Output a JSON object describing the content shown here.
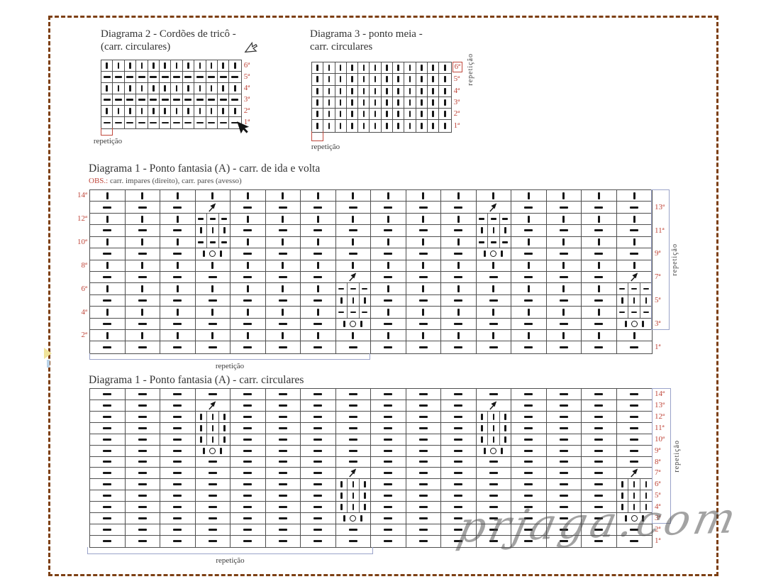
{
  "watermark": "prjaga.com",
  "colors": {
    "label_red": "#c0483c",
    "repeat_blue": "#9aa3c9",
    "border_brown": "#7d3f13",
    "symbol_black": "#161616"
  },
  "diagrams": {
    "d2": {
      "title_line1": "Diagrama 2 - Cordões de tricô -",
      "title_line2": "(carr. circulares)",
      "repeat_bottom": "repetição",
      "cols": 12,
      "rows": [
        {
          "label": "6ª",
          "base": "k"
        },
        {
          "label": "5ª",
          "base": "p"
        },
        {
          "label": "4ª",
          "base": "k"
        },
        {
          "label": "3ª",
          "base": "p"
        },
        {
          "label": "2ª",
          "base": "k"
        },
        {
          "label": "1ª",
          "base": "p"
        }
      ]
    },
    "d3": {
      "title_line1": "Diagrama 3 - ponto meia -",
      "title_line2": "carr. circulares",
      "repeat_bottom": "repetição",
      "repeat_side": "repetição",
      "cols": 12,
      "boxed_label_index": 0,
      "rows": [
        {
          "label": "6ª",
          "base": "k"
        },
        {
          "label": "5ª",
          "base": "k"
        },
        {
          "label": "4ª",
          "base": "k"
        },
        {
          "label": "3ª",
          "base": "k"
        },
        {
          "label": "2ª",
          "base": "k"
        },
        {
          "label": "1ª",
          "base": "k"
        }
      ]
    },
    "d1a": {
      "title": "Diagrama 1 - Ponto fantasia (A) - carr. de ida e volta",
      "obs_label": "OBS.:",
      "obs_text": " carr. impares (direito), carr. pares (avesso)",
      "repeat_bottom": "repetição",
      "repeat_side": "repetição",
      "cols": 16,
      "rows": [
        {
          "label": "14ª",
          "label_side": "left",
          "base": "k",
          "specials": {}
        },
        {
          "label": "13ª",
          "label_side": "right",
          "base": "p",
          "specials": {
            "4": "dec",
            "12": "dec"
          }
        },
        {
          "label": "12ª",
          "label_side": "left",
          "base": "k",
          "specials": {
            "4": "ppp",
            "12": "ppp"
          }
        },
        {
          "label": "11ª",
          "label_side": "right",
          "base": "p",
          "specials": {
            "4": "kkk",
            "12": "kkk"
          }
        },
        {
          "label": "10ª",
          "label_side": "left",
          "base": "k",
          "specials": {
            "4": "ppp",
            "12": "ppp"
          }
        },
        {
          "label": "9ª",
          "label_side": "right",
          "base": "p",
          "specials": {
            "4": "kok",
            "12": "kok"
          }
        },
        {
          "label": "8ª",
          "label_side": "left",
          "base": "k",
          "specials": {}
        },
        {
          "label": "7ª",
          "label_side": "right",
          "base": "p",
          "specials": {
            "8": "dec",
            "16": "dec"
          }
        },
        {
          "label": "6ª",
          "label_side": "left",
          "base": "k",
          "specials": {
            "8": "ppp",
            "16": "ppp"
          }
        },
        {
          "label": "5ª",
          "label_side": "right",
          "base": "p",
          "specials": {
            "8": "kkk",
            "16": "kkk"
          }
        },
        {
          "label": "4ª",
          "label_side": "left",
          "base": "k",
          "specials": {
            "8": "ppp",
            "16": "ppp"
          }
        },
        {
          "label": "3ª",
          "label_side": "right",
          "base": "p",
          "specials": {
            "8": "kok",
            "16": "kok"
          }
        },
        {
          "label": "2ª",
          "label_side": "left",
          "base": "k",
          "specials": {}
        },
        {
          "label": "1ª",
          "label_side": "right",
          "base": "p",
          "specials": {}
        }
      ]
    },
    "d1b": {
      "title": "Diagrama 1 - Ponto fantasia (A) - carr. circulares",
      "repeat_bottom": "repetição",
      "repeat_side": "repetição",
      "cols": 16,
      "rows": [
        {
          "label": "14ª",
          "label_side": "right",
          "base": "p",
          "specials": {}
        },
        {
          "label": "13ª",
          "label_side": "right",
          "base": "p",
          "specials": {
            "4": "dec",
            "12": "dec"
          }
        },
        {
          "label": "12ª",
          "label_side": "right",
          "base": "p",
          "specials": {
            "4": "kkk",
            "12": "kkk"
          }
        },
        {
          "label": "11ª",
          "label_side": "right",
          "base": "p",
          "specials": {
            "4": "kkk",
            "12": "kkk"
          }
        },
        {
          "label": "10ª",
          "label_side": "right",
          "base": "p",
          "specials": {
            "4": "kkk",
            "12": "kkk"
          }
        },
        {
          "label": "9ª",
          "label_side": "right",
          "base": "p",
          "specials": {
            "4": "kok",
            "12": "kok"
          }
        },
        {
          "label": "8ª",
          "label_side": "right",
          "base": "p",
          "specials": {}
        },
        {
          "label": "7ª",
          "label_side": "right",
          "base": "p",
          "specials": {
            "8": "dec",
            "16": "dec"
          }
        },
        {
          "label": "6ª",
          "label_side": "right",
          "base": "p",
          "specials": {
            "8": "kkk",
            "16": "kkk"
          }
        },
        {
          "label": "5ª",
          "label_side": "right",
          "base": "p",
          "specials": {
            "8": "kkk",
            "16": "kkk"
          }
        },
        {
          "label": "4ª",
          "label_side": "right",
          "base": "p",
          "specials": {
            "8": "kkk",
            "16": "kkk"
          }
        },
        {
          "label": "3ª",
          "label_side": "right",
          "base": "p",
          "specials": {
            "8": "kok",
            "16": "kok"
          }
        },
        {
          "label": "2ª",
          "label_side": "right",
          "base": "p",
          "specials": {}
        },
        {
          "label": "1ª",
          "label_side": "right",
          "base": "p",
          "specials": {}
        }
      ]
    }
  }
}
